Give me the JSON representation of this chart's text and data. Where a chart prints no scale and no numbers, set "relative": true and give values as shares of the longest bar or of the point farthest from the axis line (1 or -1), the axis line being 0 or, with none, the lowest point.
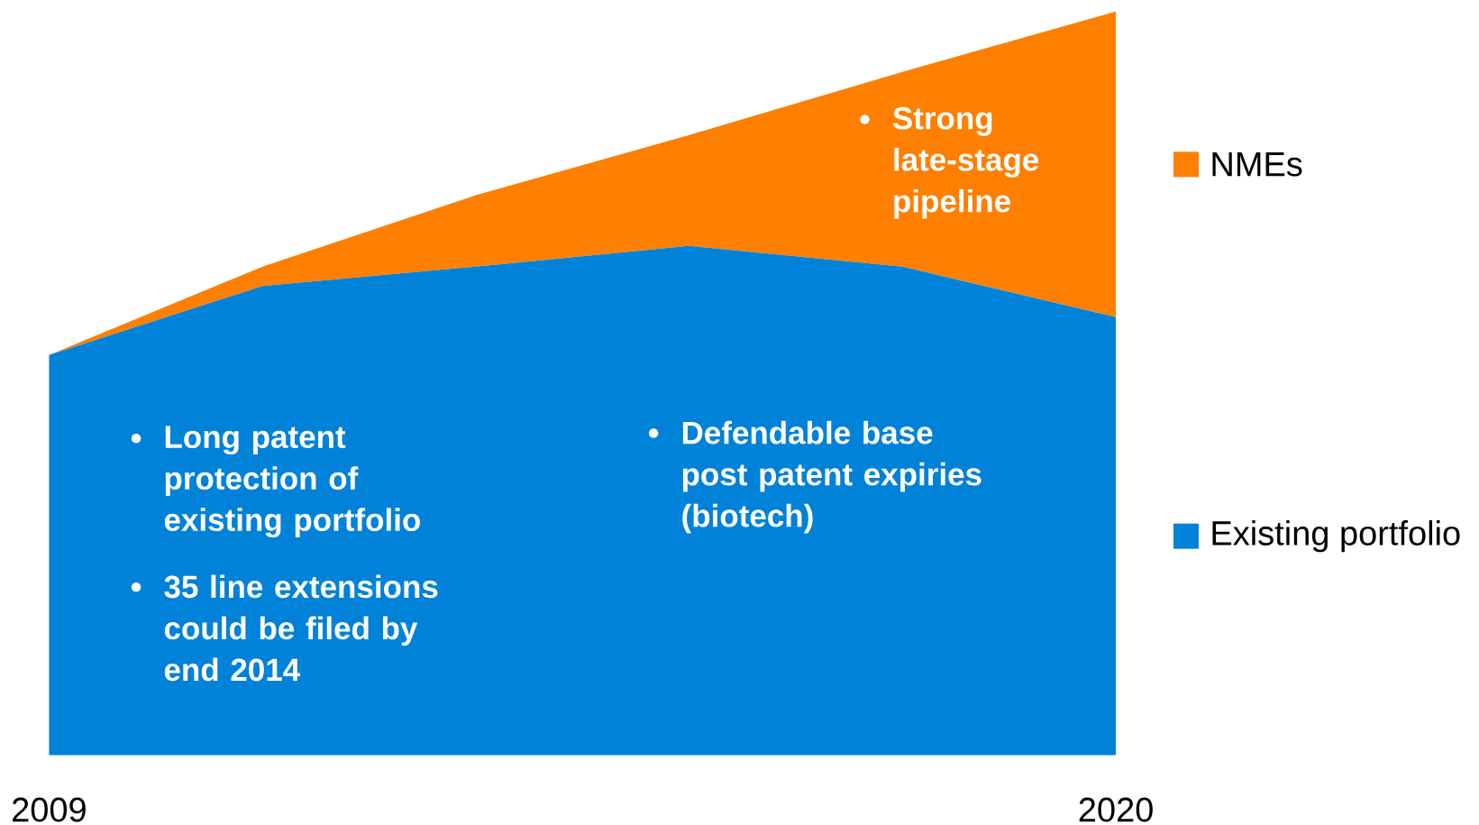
{
  "chart_data": {
    "type": "area",
    "stacked": true,
    "relative": true,
    "legend": "right",
    "categories": [
      "2009",
      null,
      null,
      null,
      null,
      "2020"
    ],
    "series": [
      {
        "name": "Existing portfolio",
        "color": "#0082d9",
        "values": [
          0.538,
          0.631,
          0.657,
          0.685,
          0.657,
          0.589
        ]
      },
      {
        "name": "NMEs",
        "color": "#ff7f00",
        "values": [
          0,
          0.026,
          0.096,
          0.149,
          0.262,
          0.411
        ]
      }
    ],
    "annotations": [
      "Long patent protection of existing portfolio",
      "35 line extensions could be filed by end 2014",
      "Defendable base post patent expiries (biotech)",
      "Strong late-stage pipeline"
    ]
  }
}
